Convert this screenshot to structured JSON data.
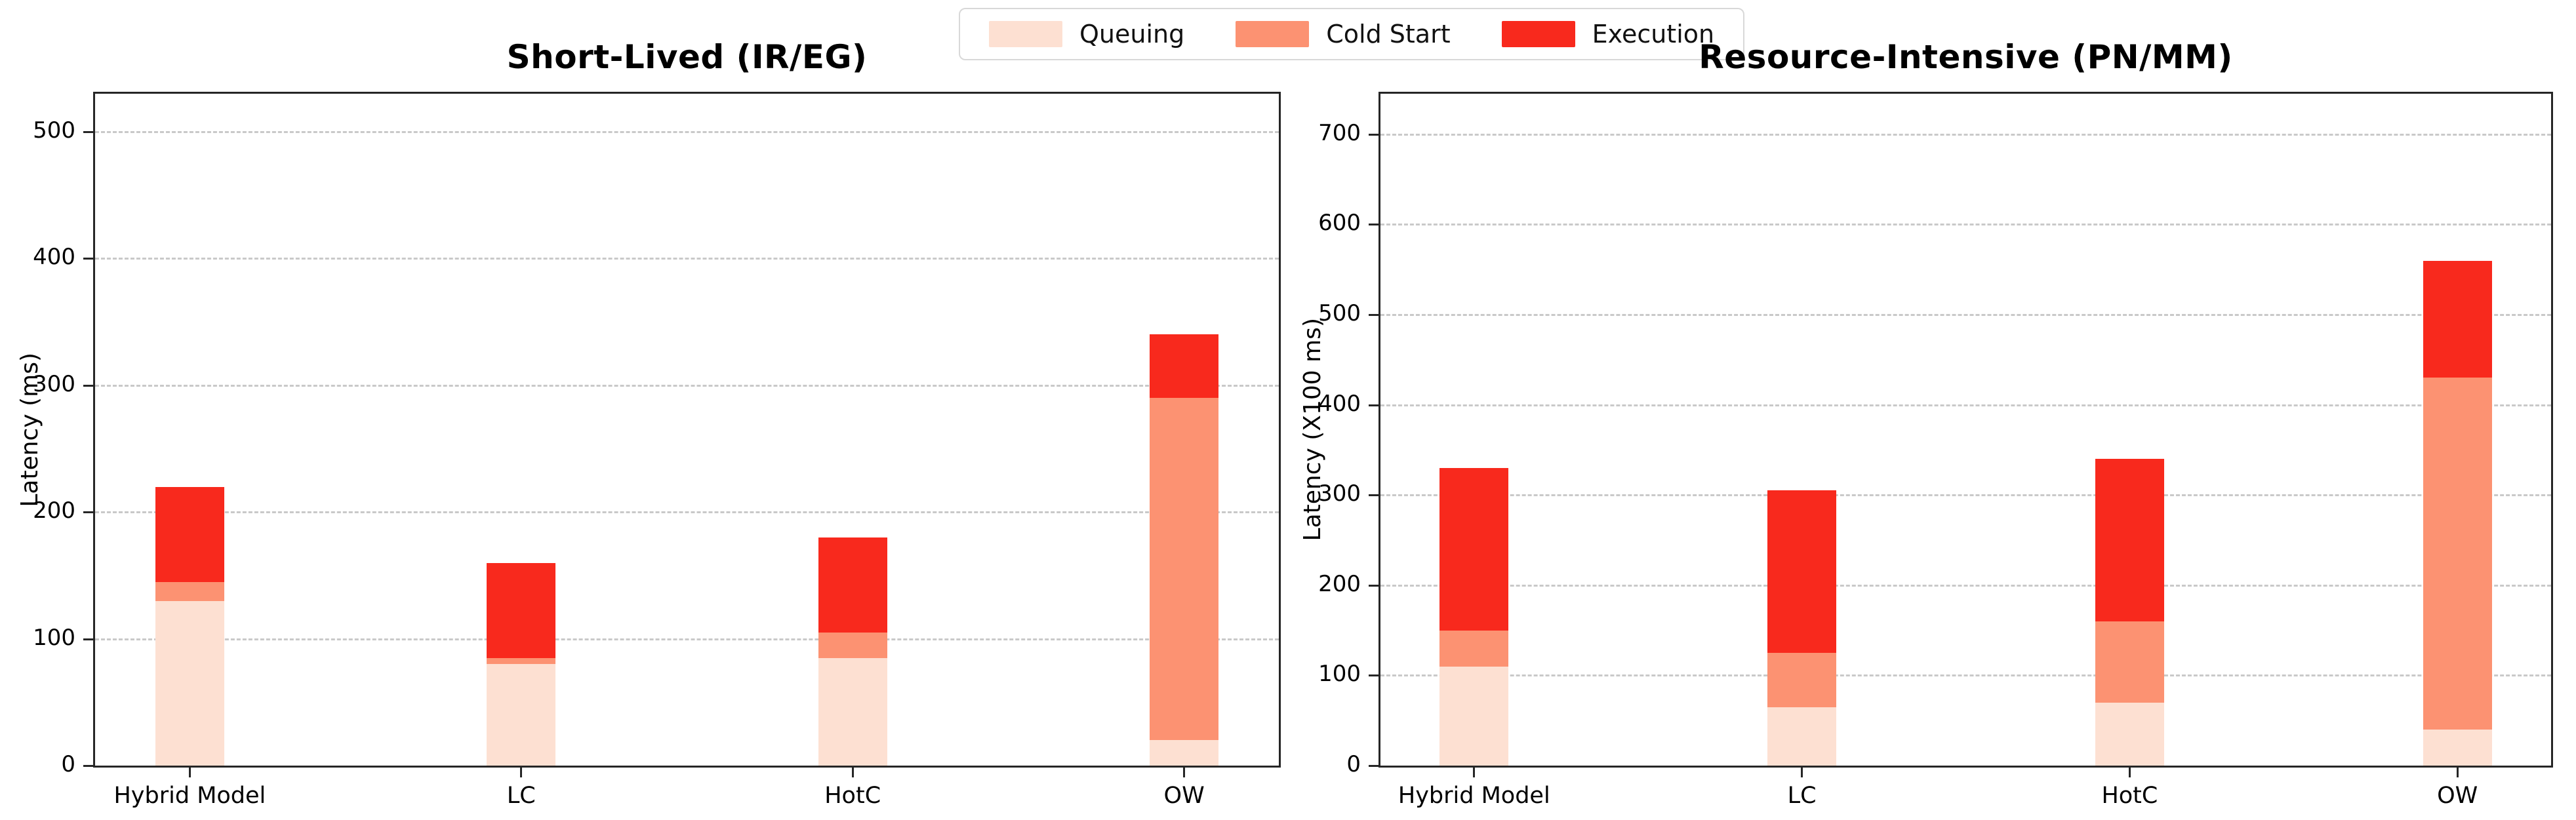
{
  "figure": {
    "background": "#ffffff"
  },
  "legend": {
    "position": "top-center",
    "items": [
      {
        "label": "Queuing",
        "color": "#fde0d2"
      },
      {
        "label": "Cold Start",
        "color": "#fc9272"
      },
      {
        "label": "Execution",
        "color": "#f8291d"
      }
    ]
  },
  "chart_data": [
    {
      "type": "bar",
      "stacked": true,
      "title": "Short-Lived (IR/EG)",
      "xlabel": "",
      "ylabel": "Latency (ms)",
      "categories": [
        "Hybrid Model",
        "LC",
        "HotC",
        "OW"
      ],
      "series": [
        {
          "name": "Queuing",
          "color": "#fde0d2",
          "values": [
            130,
            80,
            85,
            20
          ]
        },
        {
          "name": "Cold Start",
          "color": "#fc9272",
          "values": [
            15,
            5,
            20,
            270
          ]
        },
        {
          "name": "Execution",
          "color": "#f8291d",
          "values": [
            75,
            75,
            75,
            50
          ]
        }
      ],
      "totals": [
        220,
        160,
        180,
        340
      ],
      "ylim": [
        0,
        530
      ],
      "yticks": [
        0,
        100,
        200,
        300,
        400,
        500
      ],
      "grid": true,
      "legend_entries": [
        "Queuing",
        "Cold Start",
        "Execution"
      ]
    },
    {
      "type": "bar",
      "stacked": true,
      "title": "Resource-Intensive (PN/MM)",
      "xlabel": "",
      "ylabel": "Latency (X100 ms)",
      "categories": [
        "Hybrid Model",
        "LC",
        "HotC",
        "OW"
      ],
      "series": [
        {
          "name": "Queuing",
          "color": "#fde0d2",
          "values": [
            110,
            65,
            70,
            40
          ]
        },
        {
          "name": "Cold Start",
          "color": "#fc9272",
          "values": [
            40,
            60,
            90,
            390
          ]
        },
        {
          "name": "Execution",
          "color": "#f8291d",
          "values": [
            180,
            180,
            180,
            130
          ]
        }
      ],
      "totals": [
        330,
        305,
        340,
        560
      ],
      "ylim": [
        0,
        745
      ],
      "yticks": [
        0,
        100,
        200,
        300,
        400,
        500,
        600,
        700
      ],
      "grid": true,
      "legend_entries": [
        "Queuing",
        "Cold Start",
        "Execution"
      ]
    }
  ]
}
